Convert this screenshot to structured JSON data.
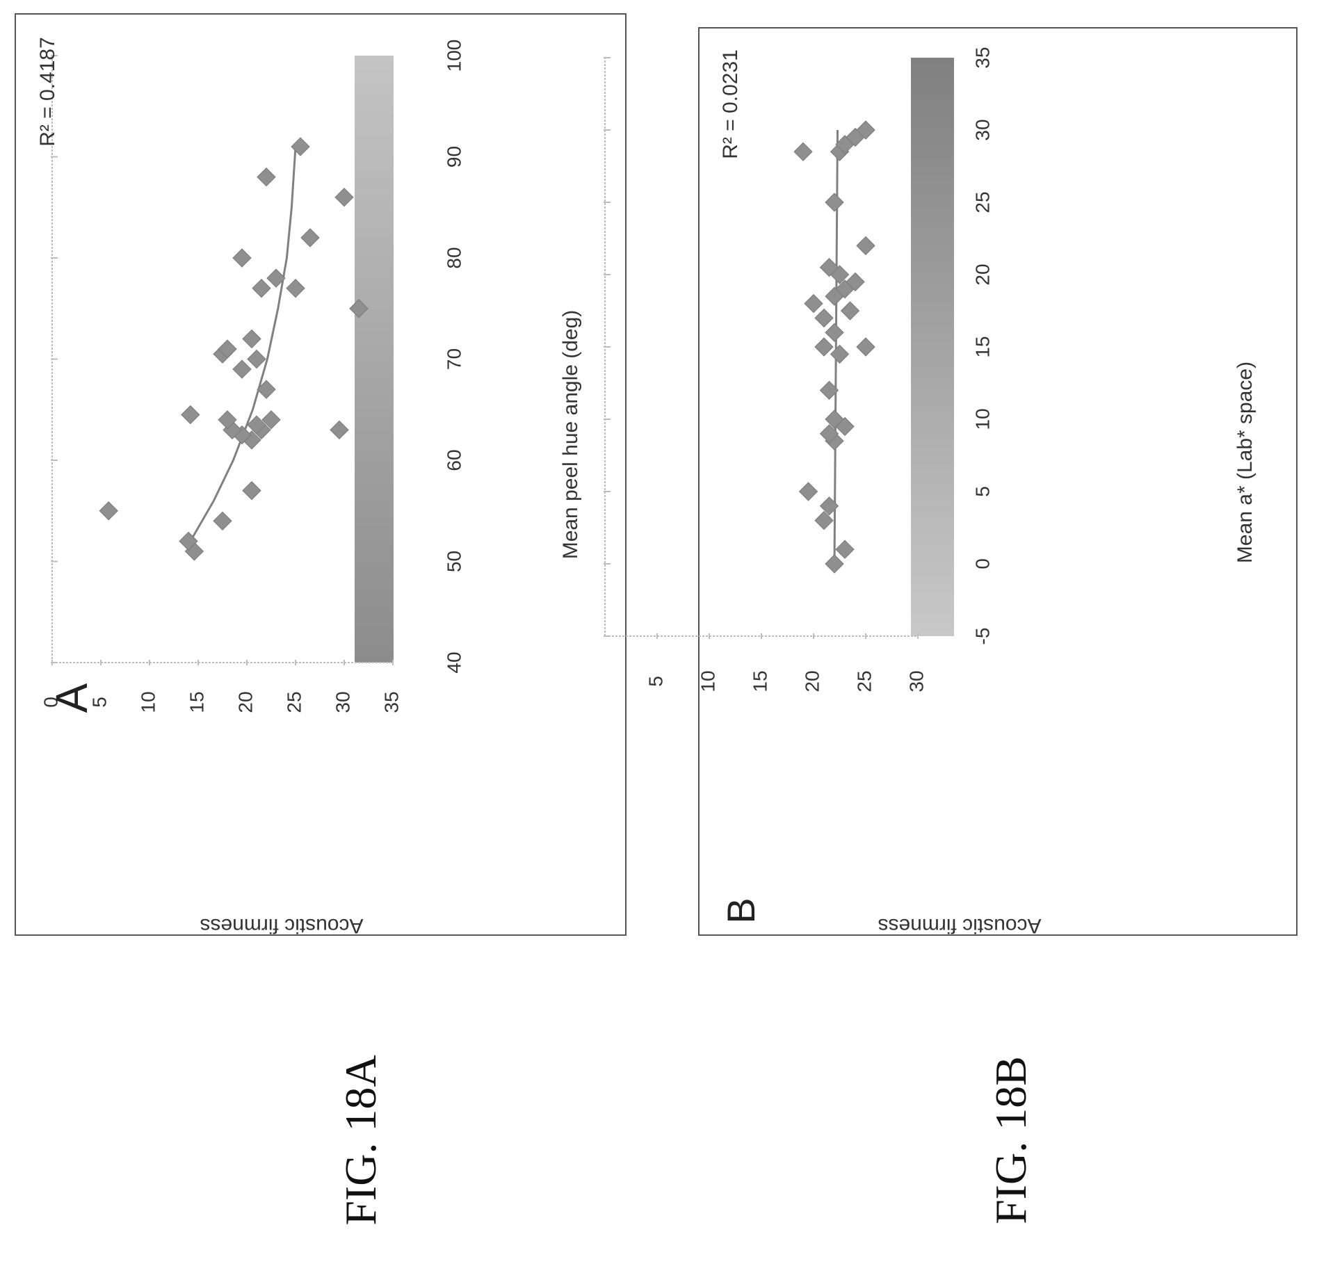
{
  "figure_labels": [
    "FIG. 18A",
    "FIG. 18B"
  ],
  "chart_data": [
    {
      "type": "scatter",
      "panel_letter": "A",
      "xlabel": "Mean peel hue angle (deg)",
      "ylabel": "Acoustic firmness",
      "xlim": [
        40,
        100
      ],
      "ylim": [
        0,
        35
      ],
      "xticks": [
        40,
        50,
        60,
        70,
        80,
        90,
        100
      ],
      "yticks": [
        0,
        5,
        10,
        15,
        20,
        25,
        30,
        35
      ],
      "r2_label": "R² = 0.4187",
      "colorbar": {
        "from": [
          40,
          50
        ],
        "to": [
          100,
          95
        ],
        "colors": [
          "#8c8c8c",
          "#c4c4c4"
        ]
      },
      "marker_color": "#8f8f8f",
      "line_color": "#808080",
      "points": [
        [
          51,
          14.6
        ],
        [
          52,
          14.0
        ],
        [
          54,
          17.5
        ],
        [
          55,
          5.8
        ],
        [
          57,
          20.5
        ],
        [
          62,
          20.5
        ],
        [
          62.5,
          19.5
        ],
        [
          63,
          29.5
        ],
        [
          63,
          21.5
        ],
        [
          63,
          18.5
        ],
        [
          63.5,
          21.0
        ],
        [
          64,
          22.5
        ],
        [
          64,
          18.0
        ],
        [
          64.5,
          14.2
        ],
        [
          67,
          22.0
        ],
        [
          69,
          19.5
        ],
        [
          70,
          21.0
        ],
        [
          70.5,
          17.5
        ],
        [
          71,
          18.0
        ],
        [
          72,
          20.5
        ],
        [
          75,
          31.5
        ],
        [
          77,
          25.0
        ],
        [
          77,
          21.5
        ],
        [
          78,
          23.0
        ],
        [
          80,
          19.5
        ],
        [
          82,
          26.5
        ],
        [
          86,
          30.0
        ],
        [
          88,
          22.0
        ],
        [
          91,
          25.5
        ]
      ],
      "trendline": [
        [
          52,
          14.2
        ],
        [
          56,
          16.6
        ],
        [
          60,
          18.6
        ],
        [
          65,
          20.6
        ],
        [
          70,
          22.1
        ],
        [
          75,
          23.2
        ],
        [
          80,
          24.1
        ],
        [
          85,
          24.6
        ],
        [
          91,
          25.0
        ]
      ]
    },
    {
      "type": "scatter",
      "panel_letter": "B",
      "xlabel": "Mean a* (Lab* space)",
      "ylabel": "Acoustic firmness",
      "xlim": [
        -5,
        35
      ],
      "ylim": [
        0,
        30
      ],
      "xticks": [
        -5,
        0,
        5,
        10,
        15,
        20,
        25,
        30,
        35
      ],
      "yticks": [
        5,
        10,
        15,
        20,
        25,
        30
      ],
      "r2_label": "R² = 0.0231",
      "colorbar": {
        "from": [
          -5,
          25
        ],
        "to": [
          35,
          95
        ],
        "colors": [
          "#c8c8c8",
          "#808080"
        ]
      },
      "marker_color": "#8f8f8f",
      "line_color": "#808080",
      "points": [
        [
          0,
          22
        ],
        [
          1,
          23
        ],
        [
          3,
          21
        ],
        [
          4,
          21.5
        ],
        [
          5,
          19.5
        ],
        [
          8.5,
          22
        ],
        [
          9,
          21.5
        ],
        [
          9.5,
          23
        ],
        [
          10,
          22
        ],
        [
          12,
          21.5
        ],
        [
          14.5,
          22.5
        ],
        [
          15,
          25
        ],
        [
          15,
          21
        ],
        [
          16,
          22
        ],
        [
          17,
          21
        ],
        [
          17.5,
          23.5
        ],
        [
          18,
          20
        ],
        [
          18.5,
          22
        ],
        [
          19,
          23
        ],
        [
          19.5,
          24
        ],
        [
          20,
          22.5
        ],
        [
          20.5,
          21.5
        ],
        [
          22,
          25
        ],
        [
          25,
          22
        ],
        [
          28.5,
          22.5
        ],
        [
          29,
          23
        ],
        [
          29.5,
          24
        ],
        [
          30,
          25
        ],
        [
          28.5,
          19
        ]
      ],
      "trendline": [
        [
          0,
          22.0
        ],
        [
          30,
          22.3
        ]
      ]
    }
  ]
}
